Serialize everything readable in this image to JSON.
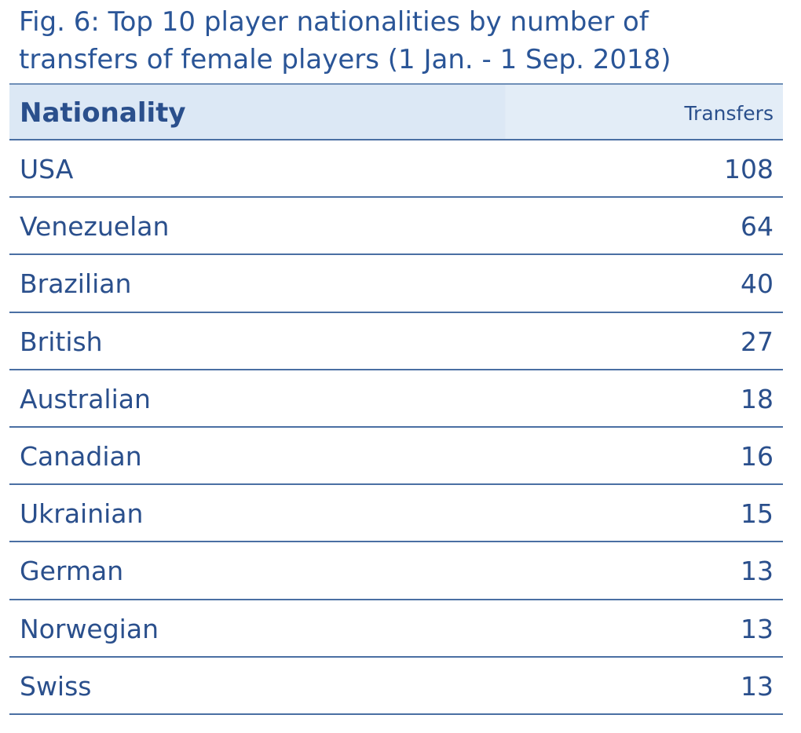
{
  "figure": {
    "title_line1": "Fig. 6: Top 10 player nationalities by number of",
    "title_line2": "transfers of female players (1 Jan. - 1 Sep. 2018)"
  },
  "chart_data": {
    "type": "table",
    "title": "Fig. 6: Top 10 player nationalities by number of transfers of female players (1 Jan. - 1 Sep. 2018)",
    "columns": [
      "Nationality",
      "Transfers"
    ],
    "rows": [
      {
        "label": "USA",
        "value": "108"
      },
      {
        "label": "Venezuelan",
        "value": "64"
      },
      {
        "label": "Brazilian",
        "value": "40"
      },
      {
        "label": "British",
        "value": "27"
      },
      {
        "label": "Australian",
        "value": "18"
      },
      {
        "label": "Canadian",
        "value": "16"
      },
      {
        "label": "Ukrainian",
        "value": "15"
      },
      {
        "label": "German",
        "value": "13"
      },
      {
        "label": "Norwegian",
        "value": "13"
      },
      {
        "label": "Swiss",
        "value": "13"
      }
    ]
  },
  "colors": {
    "text": "#2a4f8c",
    "title": "#2a5597",
    "header_bg": "#dce8f5",
    "rule": "#4a6fa3"
  }
}
